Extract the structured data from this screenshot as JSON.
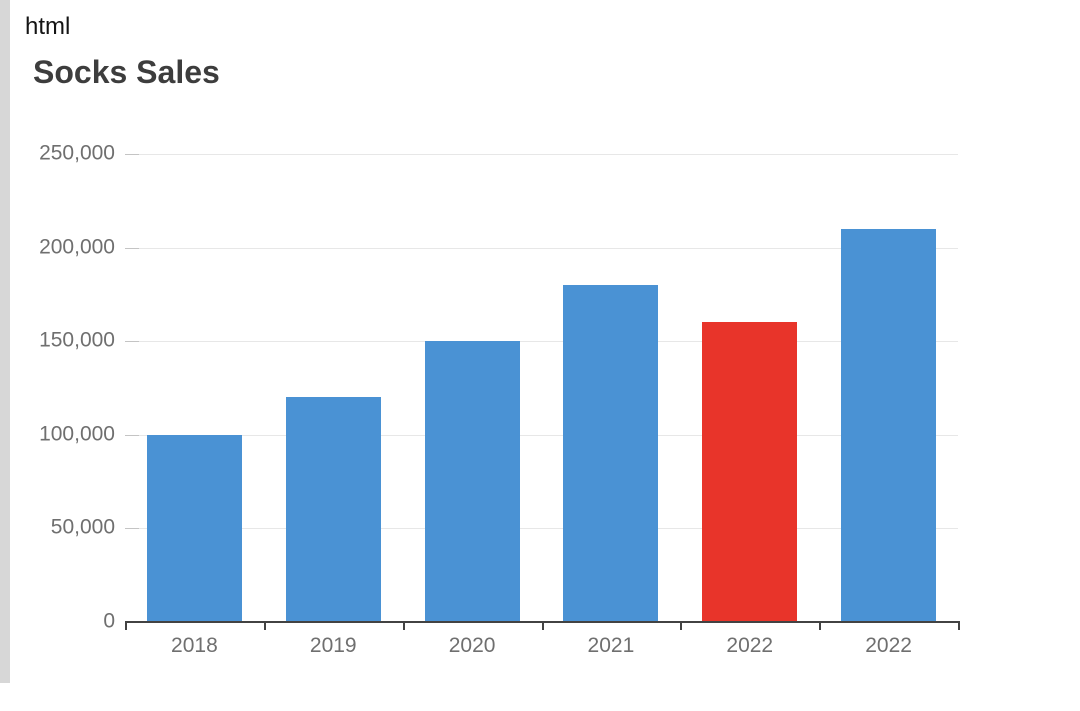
{
  "page": {
    "code_label": "html"
  },
  "chart_data": {
    "type": "bar",
    "title": "Socks Sales",
    "categories": [
      "2018",
      "2019",
      "2020",
      "2021",
      "2022",
      "2022"
    ],
    "values": [
      100000,
      120000,
      150000,
      180000,
      160000,
      210000
    ],
    "bar_colors": [
      "#4a92d4",
      "#4a92d4",
      "#4a92d4",
      "#4a92d4",
      "#e8342a",
      "#4a92d4"
    ],
    "colors": {
      "bar_default": "#4a92d4",
      "bar_highlight": "#e8342a"
    },
    "xlabel": "",
    "ylabel": "",
    "ylim": [
      0,
      250000
    ],
    "ytick_interval": 50000,
    "ytick_labels": [
      "0",
      "50,000",
      "100,000",
      "150,000",
      "200,000",
      "250,000"
    ],
    "grid": true,
    "legend": "none"
  }
}
